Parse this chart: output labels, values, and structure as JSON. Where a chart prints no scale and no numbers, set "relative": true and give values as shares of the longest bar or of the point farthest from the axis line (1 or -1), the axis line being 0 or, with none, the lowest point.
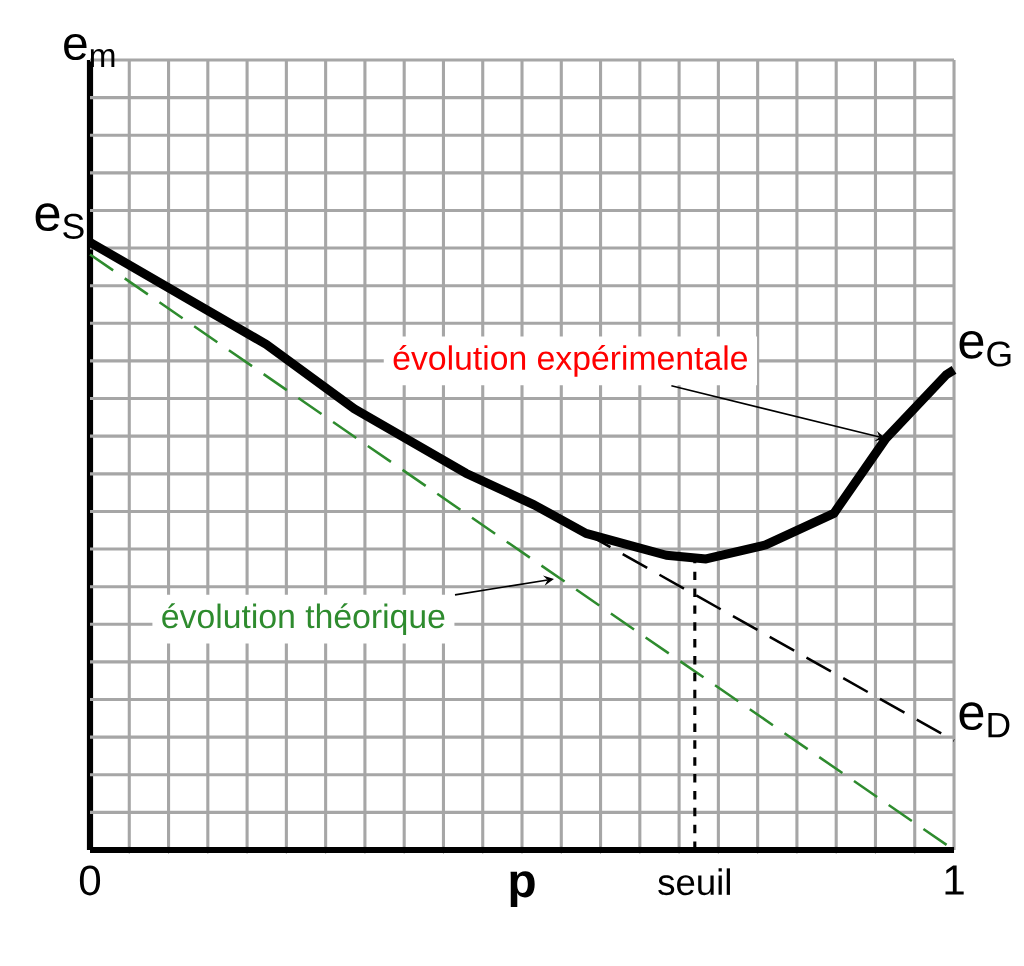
{
  "chart_data": {
    "type": "line",
    "relative": true,
    "xlabel": "p",
    "ylabel": "e$_{m}$",
    "xlim": [
      0,
      1
    ],
    "xticks": [
      0,
      1
    ],
    "grid": true,
    "marker": "none",
    "series": [
      {
        "color": "#000000",
        "line_style": "solid",
        "x": [
          0,
          0.204,
          0.306,
          0.435,
          0.514,
          0.574,
          0.667,
          0.713,
          0.782,
          0.861,
          0.921,
          0.991,
          1
        ],
        "values": [
          1.0,
          0.832,
          0.726,
          0.62,
          0.568,
          0.521,
          0.485,
          0.479,
          0.502,
          0.554,
          0.677,
          0.782,
          0.79
        ]
      },
      {
        "color": "#2e8b2e",
        "line_style": "dashed",
        "x": [
          0,
          1
        ],
        "values": [
          0.98,
          0
        ]
      },
      {
        "color": "#000000",
        "line_style": "dashed",
        "x": [
          0.574,
          1
        ],
        "values": [
          0.521,
          0.18
        ]
      }
    ],
    "ref_lines": [
      {
        "axis": "x",
        "value": 0.7,
        "label": "seuil",
        "color": "#000000",
        "line_style": "dashed"
      }
    ],
    "annotations": [
      {
        "text": "e$_{S}$",
        "x": 0,
        "y": 1.0
      },
      {
        "text": "e$_{G}$",
        "x": 1,
        "y": 0.79
      },
      {
        "text": "e$_{D}$",
        "x": 1,
        "y": 0.18
      },
      {
        "text": "évolution expérimentale",
        "x": 0.921,
        "y": 0.677
      },
      {
        "text": "évolution théorique",
        "x": 0.537,
        "y": 0.446
      }
    ]
  }
}
